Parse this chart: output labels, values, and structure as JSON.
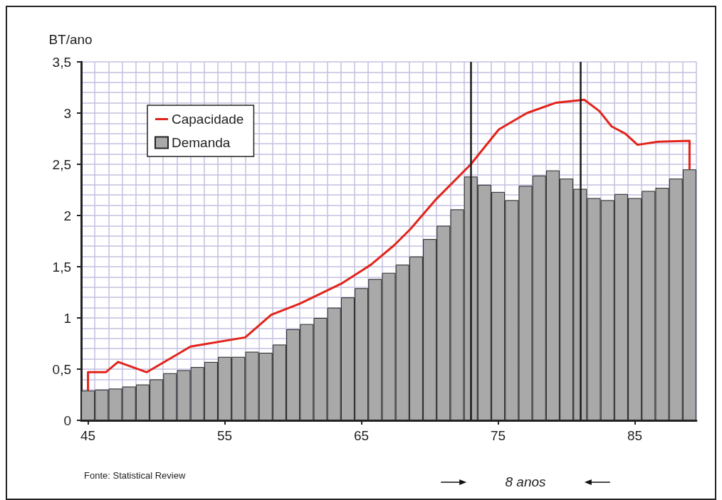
{
  "chart_data": {
    "type": "bar",
    "ylabel": "BT/ano",
    "annotations": [
      "Fonte: Statistical Review",
      "8 anos"
    ],
    "xlim": [
      44.5,
      89.5
    ],
    "xticks": [
      45,
      55,
      65,
      75,
      85
    ],
    "ylim": [
      0,
      3.5
    ],
    "yticks": [
      0,
      {
        "value": 0.5,
        "label": "0,5"
      },
      1,
      {
        "value": 1.5,
        "label": "1,5"
      },
      2,
      {
        "value": 2.5,
        "label": "2,5"
      },
      3,
      {
        "value": 3.5,
        "label": "3,5"
      }
    ],
    "grid": true,
    "legend": "top left",
    "series": [
      {
        "name": "Demanda",
        "color": "#a9a9a9",
        "x": [
          45,
          46,
          47,
          48,
          49,
          50,
          51,
          52,
          53,
          54,
          55,
          56,
          57,
          58,
          59,
          60,
          61,
          62,
          63,
          64,
          65,
          66,
          67,
          68,
          69,
          70,
          71,
          72,
          73,
          74,
          75,
          76,
          77,
          78,
          79,
          80,
          81,
          82,
          83,
          84,
          85,
          86,
          87,
          88,
          89
        ],
        "values": [
          0.29,
          0.3,
          0.31,
          0.33,
          0.35,
          0.4,
          0.46,
          0.49,
          0.52,
          0.57,
          0.62,
          0.62,
          0.67,
          0.66,
          0.74,
          0.89,
          0.94,
          1.0,
          1.1,
          1.2,
          1.29,
          1.38,
          1.44,
          1.52,
          1.6,
          1.77,
          1.9,
          2.06,
          2.38,
          2.3,
          2.23,
          2.15,
          2.29,
          2.39,
          2.44,
          2.36,
          2.26,
          2.17,
          2.15,
          2.21,
          2.17,
          2.24,
          2.27,
          2.36,
          2.45
        ]
      },
      {
        "name": "Capacidade",
        "type": "line",
        "color": "#e2231a",
        "marker": "none",
        "line_style": "solid",
        "x": [
          45,
          45,
          46.3,
          47.2,
          49.3,
          52.5,
          56.5,
          58.4,
          60.5,
          63.6,
          65.7,
          67.4,
          68.6,
          70.4,
          73.0,
          75.05,
          77.1,
          79.2,
          81.3,
          82.4,
          83.3,
          84.3,
          85.2,
          86.7,
          89.0,
          89.0
        ],
        "values": [
          0.29,
          0.47,
          0.47,
          0.57,
          0.47,
          0.72,
          0.81,
          1.03,
          1.14,
          1.34,
          1.52,
          1.71,
          1.87,
          2.15,
          2.5,
          2.84,
          3.0,
          3.1,
          3.13,
          3.02,
          2.87,
          2.8,
          2.69,
          2.72,
          2.73,
          2.45
        ]
      }
    ],
    "ref_lines": [
      {
        "axis": "x",
        "value": 73,
        "color": "#1a1a1a",
        "line_style": "solid"
      },
      {
        "axis": "x",
        "value": 81,
        "color": "#1a1a1a",
        "line_style": "solid"
      }
    ]
  }
}
